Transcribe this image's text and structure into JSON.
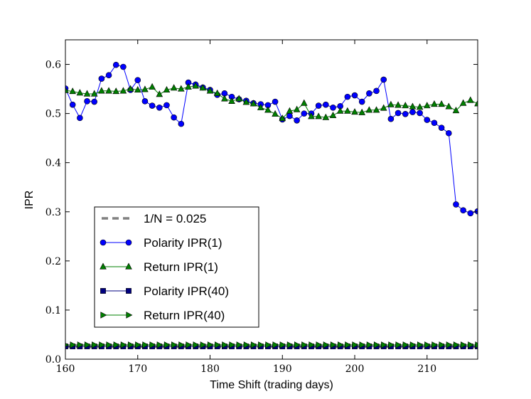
{
  "chart_data": {
    "type": "line",
    "title": "",
    "xlabel": "Time Shift (trading days)",
    "ylabel": "IPR",
    "xlim": [
      160,
      217
    ],
    "ylim": [
      0.0,
      0.65
    ],
    "x_ticks": [
      160,
      170,
      180,
      190,
      200,
      210
    ],
    "y_ticks": [
      0.0,
      0.1,
      0.2,
      0.3,
      0.4,
      0.5,
      0.6
    ],
    "x_tick_labels": [
      "160",
      "170",
      "180",
      "190",
      "200",
      "210"
    ],
    "y_tick_labels": [
      "0.0",
      "0.1",
      "0.2",
      "0.3",
      "0.4",
      "0.5",
      "0.6"
    ],
    "grid": false,
    "legend_position": "lower-left",
    "x": [
      160,
      161,
      162,
      163,
      164,
      165,
      166,
      167,
      168,
      169,
      170,
      171,
      172,
      173,
      174,
      175,
      176,
      177,
      178,
      179,
      180,
      181,
      182,
      183,
      184,
      185,
      186,
      187,
      188,
      189,
      190,
      191,
      192,
      193,
      194,
      195,
      196,
      197,
      198,
      199,
      200,
      201,
      202,
      203,
      204,
      205,
      206,
      207,
      208,
      209,
      210,
      211,
      212,
      213,
      214,
      215,
      216,
      217
    ],
    "series": [
      {
        "name": "1/N = 0.025",
        "color": "#808080",
        "style": "dashed",
        "marker": "none",
        "values": [
          0.025,
          0.025,
          0.025,
          0.025,
          0.025,
          0.025,
          0.025,
          0.025,
          0.025,
          0.025,
          0.025,
          0.025,
          0.025,
          0.025,
          0.025,
          0.025,
          0.025,
          0.025,
          0.025,
          0.025,
          0.025,
          0.025,
          0.025,
          0.025,
          0.025,
          0.025,
          0.025,
          0.025,
          0.025,
          0.025,
          0.025,
          0.025,
          0.025,
          0.025,
          0.025,
          0.025,
          0.025,
          0.025,
          0.025,
          0.025,
          0.025,
          0.025,
          0.025,
          0.025,
          0.025,
          0.025,
          0.025,
          0.025,
          0.025,
          0.025,
          0.025,
          0.025,
          0.025,
          0.025,
          0.025,
          0.025,
          0.025,
          0.025
        ]
      },
      {
        "name": "Polarity IPR(1)",
        "color": "#0000ff",
        "style": "solid",
        "marker": "circle",
        "values": [
          0.551,
          0.518,
          0.491,
          0.525,
          0.524,
          0.571,
          0.578,
          0.599,
          0.595,
          0.548,
          0.568,
          0.525,
          0.516,
          0.512,
          0.517,
          0.492,
          0.479,
          0.563,
          0.559,
          0.553,
          0.548,
          0.538,
          0.541,
          0.534,
          0.529,
          0.526,
          0.521,
          0.519,
          0.517,
          0.524,
          0.488,
          0.495,
          0.486,
          0.5,
          0.5,
          0.516,
          0.518,
          0.512,
          0.515,
          0.534,
          0.537,
          0.524,
          0.541,
          0.546,
          0.569,
          0.489,
          0.501,
          0.499,
          0.503,
          0.501,
          0.487,
          0.481,
          0.471,
          0.46,
          0.315,
          0.303,
          0.297,
          0.301
        ]
      },
      {
        "name": "Return IPR(1)",
        "color": "#008000",
        "style": "solid",
        "marker": "triangle-up",
        "values": [
          0.547,
          0.545,
          0.542,
          0.54,
          0.54,
          0.546,
          0.546,
          0.545,
          0.546,
          0.55,
          0.548,
          0.549,
          0.554,
          0.539,
          0.548,
          0.552,
          0.55,
          0.554,
          0.556,
          0.552,
          0.546,
          0.541,
          0.53,
          0.525,
          0.53,
          0.523,
          0.52,
          0.512,
          0.507,
          0.499,
          0.49,
          0.505,
          0.508,
          0.521,
          0.494,
          0.494,
          0.492,
          0.496,
          0.505,
          0.505,
          0.503,
          0.502,
          0.507,
          0.507,
          0.511,
          0.518,
          0.517,
          0.516,
          0.514,
          0.513,
          0.516,
          0.519,
          0.519,
          0.514,
          0.506,
          0.521,
          0.527,
          0.52
        ]
      },
      {
        "name": "Polarity IPR(40)",
        "color": "#000080",
        "style": "solid",
        "marker": "square",
        "values": [
          0.026,
          0.026,
          0.026,
          0.026,
          0.026,
          0.026,
          0.026,
          0.026,
          0.026,
          0.026,
          0.026,
          0.026,
          0.026,
          0.026,
          0.026,
          0.026,
          0.026,
          0.026,
          0.026,
          0.026,
          0.026,
          0.026,
          0.026,
          0.026,
          0.026,
          0.026,
          0.026,
          0.026,
          0.026,
          0.026,
          0.026,
          0.026,
          0.026,
          0.026,
          0.026,
          0.026,
          0.026,
          0.026,
          0.026,
          0.026,
          0.026,
          0.026,
          0.026,
          0.026,
          0.026,
          0.026,
          0.026,
          0.026,
          0.026,
          0.026,
          0.026,
          0.026,
          0.026,
          0.026,
          0.026,
          0.026,
          0.026,
          0.026
        ]
      },
      {
        "name": "Return IPR(40)",
        "color": "#008000",
        "style": "solid",
        "marker": "triangle-right",
        "values": [
          0.029,
          0.029,
          0.029,
          0.029,
          0.029,
          0.029,
          0.029,
          0.029,
          0.029,
          0.029,
          0.029,
          0.029,
          0.029,
          0.029,
          0.029,
          0.029,
          0.029,
          0.029,
          0.029,
          0.029,
          0.029,
          0.029,
          0.029,
          0.029,
          0.029,
          0.029,
          0.029,
          0.029,
          0.029,
          0.029,
          0.029,
          0.029,
          0.029,
          0.029,
          0.029,
          0.029,
          0.029,
          0.029,
          0.029,
          0.029,
          0.029,
          0.029,
          0.029,
          0.029,
          0.029,
          0.029,
          0.029,
          0.029,
          0.029,
          0.029,
          0.029,
          0.029,
          0.029,
          0.029,
          0.029,
          0.029,
          0.029,
          0.029
        ]
      }
    ]
  }
}
